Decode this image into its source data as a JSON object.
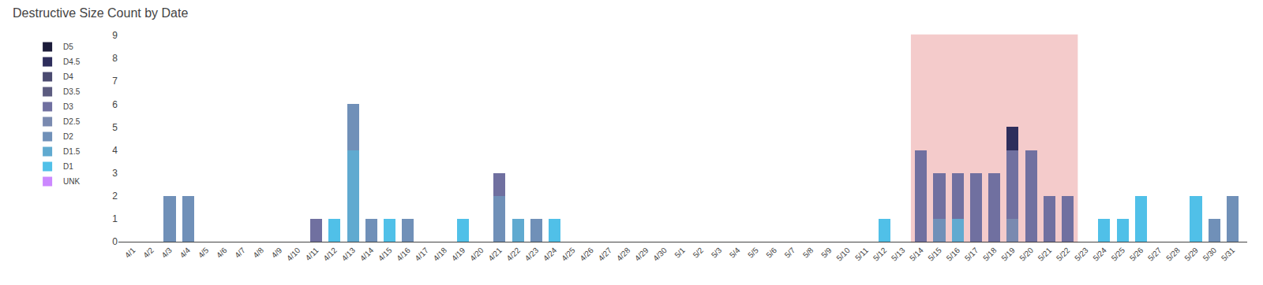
{
  "chart_data": {
    "type": "bar",
    "stacked": true,
    "title": "Destructive Size Count by Date",
    "categories": [
      "4/1",
      "4/2",
      "4/3",
      "4/4",
      "4/5",
      "4/6",
      "4/7",
      "4/8",
      "4/9",
      "4/10",
      "4/11",
      "4/12",
      "4/13",
      "4/14",
      "4/15",
      "4/16",
      "4/17",
      "4/18",
      "4/19",
      "4/20",
      "4/21",
      "4/22",
      "4/23",
      "4/24",
      "4/25",
      "4/26",
      "4/27",
      "4/28",
      "4/29",
      "4/30",
      "5/1",
      "5/2",
      "5/3",
      "5/4",
      "5/5",
      "5/6",
      "5/7",
      "5/8",
      "5/9",
      "5/10",
      "5/11",
      "5/12",
      "5/13",
      "5/14",
      "5/15",
      "5/16",
      "5/17",
      "5/18",
      "5/19",
      "5/20",
      "5/21",
      "5/22",
      "5/23",
      "5/24",
      "5/25",
      "5/26",
      "5/27",
      "5/28",
      "5/29",
      "5/30",
      "5/31"
    ],
    "series": [
      {
        "name": "UNK",
        "color": "#cc88ff",
        "values": [
          0,
          0,
          0,
          0,
          0,
          0,
          0,
          0,
          0,
          0,
          0,
          0,
          0,
          0,
          0,
          0,
          0,
          0,
          0,
          0,
          0,
          0,
          0,
          0,
          0,
          0,
          0,
          0,
          0,
          0,
          0,
          0,
          0,
          0,
          0,
          0,
          0,
          0,
          0,
          0,
          0,
          0,
          0,
          0,
          0,
          0,
          0,
          0,
          0,
          0,
          0,
          0,
          0,
          0,
          0,
          0,
          0,
          0,
          0,
          0,
          0
        ]
      },
      {
        "name": "D1",
        "color": "#50c0e8",
        "values": [
          0,
          0,
          0,
          0,
          0,
          0,
          0,
          0,
          0,
          0,
          0,
          1,
          0,
          0,
          1,
          0,
          0,
          0,
          1,
          0,
          0,
          0,
          0,
          1,
          0,
          0,
          0,
          0,
          0,
          0,
          0,
          0,
          0,
          0,
          0,
          0,
          0,
          0,
          0,
          0,
          0,
          1,
          0,
          0,
          0,
          0,
          0,
          0,
          0,
          0,
          0,
          0,
          0,
          1,
          1,
          2,
          0,
          0,
          2,
          0,
          0
        ]
      },
      {
        "name": "D1.5",
        "color": "#60aad0",
        "values": [
          0,
          0,
          0,
          0,
          0,
          0,
          0,
          0,
          0,
          0,
          0,
          0,
          4,
          0,
          0,
          0,
          0,
          0,
          0,
          0,
          0,
          1,
          0,
          0,
          0,
          0,
          0,
          0,
          0,
          0,
          0,
          0,
          0,
          0,
          0,
          0,
          0,
          0,
          0,
          0,
          0,
          0,
          0,
          0,
          0,
          1,
          0,
          0,
          0,
          0,
          0,
          0,
          0,
          0,
          0,
          0,
          0,
          0,
          0,
          0,
          0
        ]
      },
      {
        "name": "D2",
        "color": "#7090b8",
        "values": [
          0,
          0,
          2,
          2,
          0,
          0,
          0,
          0,
          0,
          0,
          0,
          0,
          2,
          1,
          0,
          1,
          0,
          0,
          0,
          0,
          2,
          0,
          1,
          0,
          0,
          0,
          0,
          0,
          0,
          0,
          0,
          0,
          0,
          0,
          0,
          0,
          0,
          0,
          0,
          0,
          0,
          0,
          0,
          0,
          1,
          0,
          0,
          0,
          0,
          0,
          0,
          0,
          0,
          0,
          0,
          0,
          0,
          0,
          0,
          1,
          2
        ]
      },
      {
        "name": "D2.5",
        "color": "#7a8ab0",
        "values": [
          0,
          0,
          0,
          0,
          0,
          0,
          0,
          0,
          0,
          0,
          0,
          0,
          0,
          0,
          0,
          0,
          0,
          0,
          0,
          0,
          0,
          0,
          0,
          0,
          0,
          0,
          0,
          0,
          0,
          0,
          0,
          0,
          0,
          0,
          0,
          0,
          0,
          0,
          0,
          0,
          0,
          0,
          0,
          0,
          0,
          0,
          0,
          0,
          1,
          0,
          0,
          0,
          0,
          0,
          0,
          0,
          0,
          0,
          0,
          0,
          0
        ]
      },
      {
        "name": "D3",
        "color": "#7070a0",
        "values": [
          0,
          0,
          0,
          0,
          0,
          0,
          0,
          0,
          0,
          0,
          1,
          0,
          0,
          0,
          0,
          0,
          0,
          0,
          0,
          0,
          1,
          0,
          0,
          0,
          0,
          0,
          0,
          0,
          0,
          0,
          0,
          0,
          0,
          0,
          0,
          0,
          0,
          0,
          0,
          0,
          0,
          0,
          0,
          4,
          2,
          2,
          3,
          3,
          3,
          4,
          2,
          2,
          0,
          0,
          0,
          0,
          0,
          0,
          0,
          0,
          0
        ]
      },
      {
        "name": "D3.5",
        "color": "#5c5c80",
        "values": [
          0,
          0,
          0,
          0,
          0,
          0,
          0,
          0,
          0,
          0,
          0,
          0,
          0,
          0,
          0,
          0,
          0,
          0,
          0,
          0,
          0,
          0,
          0,
          0,
          0,
          0,
          0,
          0,
          0,
          0,
          0,
          0,
          0,
          0,
          0,
          0,
          0,
          0,
          0,
          0,
          0,
          0,
          0,
          0,
          0,
          0,
          0,
          0,
          0,
          0,
          0,
          0,
          0,
          0,
          0,
          0,
          0,
          0,
          0,
          0,
          0
        ]
      },
      {
        "name": "D4",
        "color": "#4a4a70",
        "values": [
          0,
          0,
          0,
          0,
          0,
          0,
          0,
          0,
          0,
          0,
          0,
          0,
          0,
          0,
          0,
          0,
          0,
          0,
          0,
          0,
          0,
          0,
          0,
          0,
          0,
          0,
          0,
          0,
          0,
          0,
          0,
          0,
          0,
          0,
          0,
          0,
          0,
          0,
          0,
          0,
          0,
          0,
          0,
          0,
          0,
          0,
          0,
          0,
          0,
          0,
          0,
          0,
          0,
          0,
          0,
          0,
          0,
          0,
          0,
          0,
          0
        ]
      },
      {
        "name": "D4.5",
        "color": "#2e2e5c",
        "values": [
          0,
          0,
          0,
          0,
          0,
          0,
          0,
          0,
          0,
          0,
          0,
          0,
          0,
          0,
          0,
          0,
          0,
          0,
          0,
          0,
          0,
          0,
          0,
          0,
          0,
          0,
          0,
          0,
          0,
          0,
          0,
          0,
          0,
          0,
          0,
          0,
          0,
          0,
          0,
          0,
          0,
          0,
          0,
          0,
          0,
          0,
          0,
          0,
          1,
          0,
          0,
          0,
          0,
          0,
          0,
          0,
          0,
          0,
          0,
          0,
          0
        ]
      },
      {
        "name": "D5",
        "color": "#1c1c3a",
        "values": [
          0,
          0,
          0,
          0,
          0,
          0,
          0,
          0,
          0,
          0,
          0,
          0,
          0,
          0,
          0,
          0,
          0,
          0,
          0,
          0,
          0,
          0,
          0,
          0,
          0,
          0,
          0,
          0,
          0,
          0,
          0,
          0,
          0,
          0,
          0,
          0,
          0,
          0,
          0,
          0,
          0,
          0,
          0,
          0,
          0,
          0,
          0,
          0,
          0,
          0,
          0,
          0,
          0,
          0,
          0,
          0,
          0,
          0,
          0,
          0,
          0
        ]
      }
    ],
    "highlight": {
      "start": "5/14",
      "end": "5/22",
      "color": "#cc0000"
    },
    "ylim": [
      0,
      9
    ],
    "yticks": [
      0,
      1,
      2,
      3,
      4,
      5,
      6,
      7,
      8,
      9
    ],
    "grid": false,
    "legend": "upper left"
  }
}
